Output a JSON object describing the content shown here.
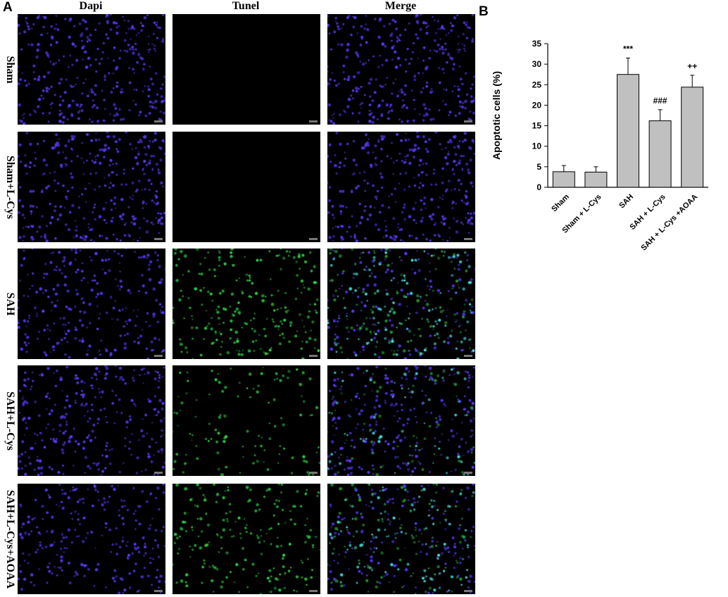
{
  "panel_a": {
    "letter": "A",
    "columns": [
      {
        "key": "dapi",
        "label": "Dapi"
      },
      {
        "key": "tunel",
        "label": "Tunel"
      },
      {
        "key": "merge",
        "label": "Merge"
      }
    ],
    "rows": [
      {
        "label": "Sham",
        "dapi_level": 1.0,
        "tunel_level": 0.0
      },
      {
        "label": "Sham+L-Cys",
        "dapi_level": 1.0,
        "tunel_level": 0.0
      },
      {
        "label": "SAH",
        "dapi_level": 0.8,
        "tunel_level": 0.9
      },
      {
        "label": "SAH+L-Cys",
        "dapi_level": 0.9,
        "tunel_level": 0.45
      },
      {
        "label": "SAH+L-Cys+AOAA",
        "dapi_level": 0.75,
        "tunel_level": 0.85
      }
    ],
    "colors": {
      "dapi": "#5a3cff",
      "tunel": "#33d94a",
      "merge_overlap": "#4fe0e0",
      "background": "#000000"
    }
  },
  "panel_b": {
    "letter": "B"
  },
  "chart_data": {
    "type": "bar",
    "title": "",
    "xlabel": "",
    "ylabel": "Apoptotic cells (%)",
    "ylim": [
      0,
      35
    ],
    "yticks": [
      "0",
      "5",
      "10",
      "15",
      "20",
      "25",
      "30",
      "35"
    ],
    "categories": [
      "Sham",
      "Sham + L-Cys",
      "SAH",
      "SAH + L-Cys",
      "SAH + L-Cys +AOAA"
    ],
    "values": [
      3.8,
      3.7,
      27.5,
      16.2,
      24.4
    ],
    "errors": [
      1.5,
      1.3,
      4.0,
      2.7,
      2.9
    ],
    "annotations": [
      "",
      "",
      "***",
      "###",
      "++"
    ],
    "bar_color": "#c0c0c0",
    "grid": false
  }
}
